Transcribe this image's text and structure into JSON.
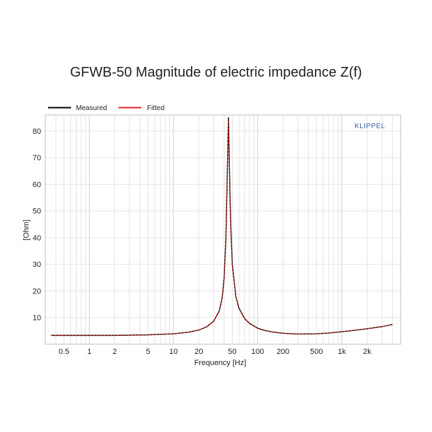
{
  "chart_data": {
    "type": "line",
    "title": "GFWB-50 Magnitude of electric impedance Z(f)",
    "xlabel": "Frequency [Hz]",
    "ylabel": "[Ohm]",
    "xscale": "log",
    "xlim": [
      0.3,
      5000
    ],
    "ylim": [
      0,
      86
    ],
    "x_tick_values": [
      0.5,
      1,
      2,
      5,
      10,
      20,
      50,
      100,
      200,
      500,
      1000,
      2000
    ],
    "x_tick_labels": [
      "0.5",
      "1",
      "2",
      "5",
      "10",
      "20",
      "50",
      "100",
      "200",
      "500",
      "1k",
      "2k"
    ],
    "y_ticks": [
      10,
      20,
      30,
      40,
      50,
      60,
      70,
      80
    ],
    "grid": true,
    "legend_position": "top-left",
    "brand": "KLIPPEL",
    "series": [
      {
        "name": "Measured",
        "color": "#000000",
        "x": [
          0.35,
          0.5,
          1,
          2,
          5,
          10,
          15,
          20,
          25,
          30,
          35,
          38,
          40,
          42,
          43,
          44,
          45,
          46,
          47,
          48,
          50,
          55,
          60,
          70,
          80,
          100,
          120,
          150,
          200,
          300,
          500,
          700,
          1000,
          1500,
          2000,
          3000,
          4000
        ],
        "y": [
          3.3,
          3.3,
          3.3,
          3.3,
          3.5,
          3.9,
          4.5,
          5.3,
          6.6,
          8.6,
          12.5,
          17.5,
          25,
          40,
          55,
          70,
          85,
          70,
          55,
          44,
          30,
          18,
          13.5,
          9.6,
          7.8,
          6.0,
          5.2,
          4.6,
          4.1,
          3.8,
          3.9,
          4.2,
          4.7,
          5.3,
          5.8,
          6.6,
          7.4
        ]
      },
      {
        "name": "Fitted",
        "color": "#e02020",
        "x": [
          0.35,
          0.5,
          1,
          2,
          5,
          10,
          15,
          20,
          25,
          30,
          35,
          38,
          40,
          42,
          43,
          44,
          45,
          46,
          47,
          48,
          50,
          55,
          60,
          70,
          80,
          100,
          120,
          150,
          200,
          300,
          500,
          700,
          1000,
          1500,
          2000,
          3000,
          4000
        ],
        "y": [
          3.3,
          3.3,
          3.3,
          3.3,
          3.5,
          3.9,
          4.5,
          5.3,
          6.5,
          8.5,
          12.3,
          17.3,
          24.5,
          39,
          54,
          69,
          84,
          69,
          54,
          43,
          29.5,
          17.8,
          13.3,
          9.5,
          7.7,
          5.9,
          5.1,
          4.6,
          4.1,
          3.8,
          3.9,
          4.2,
          4.7,
          5.3,
          5.8,
          6.6,
          7.4
        ]
      }
    ]
  }
}
